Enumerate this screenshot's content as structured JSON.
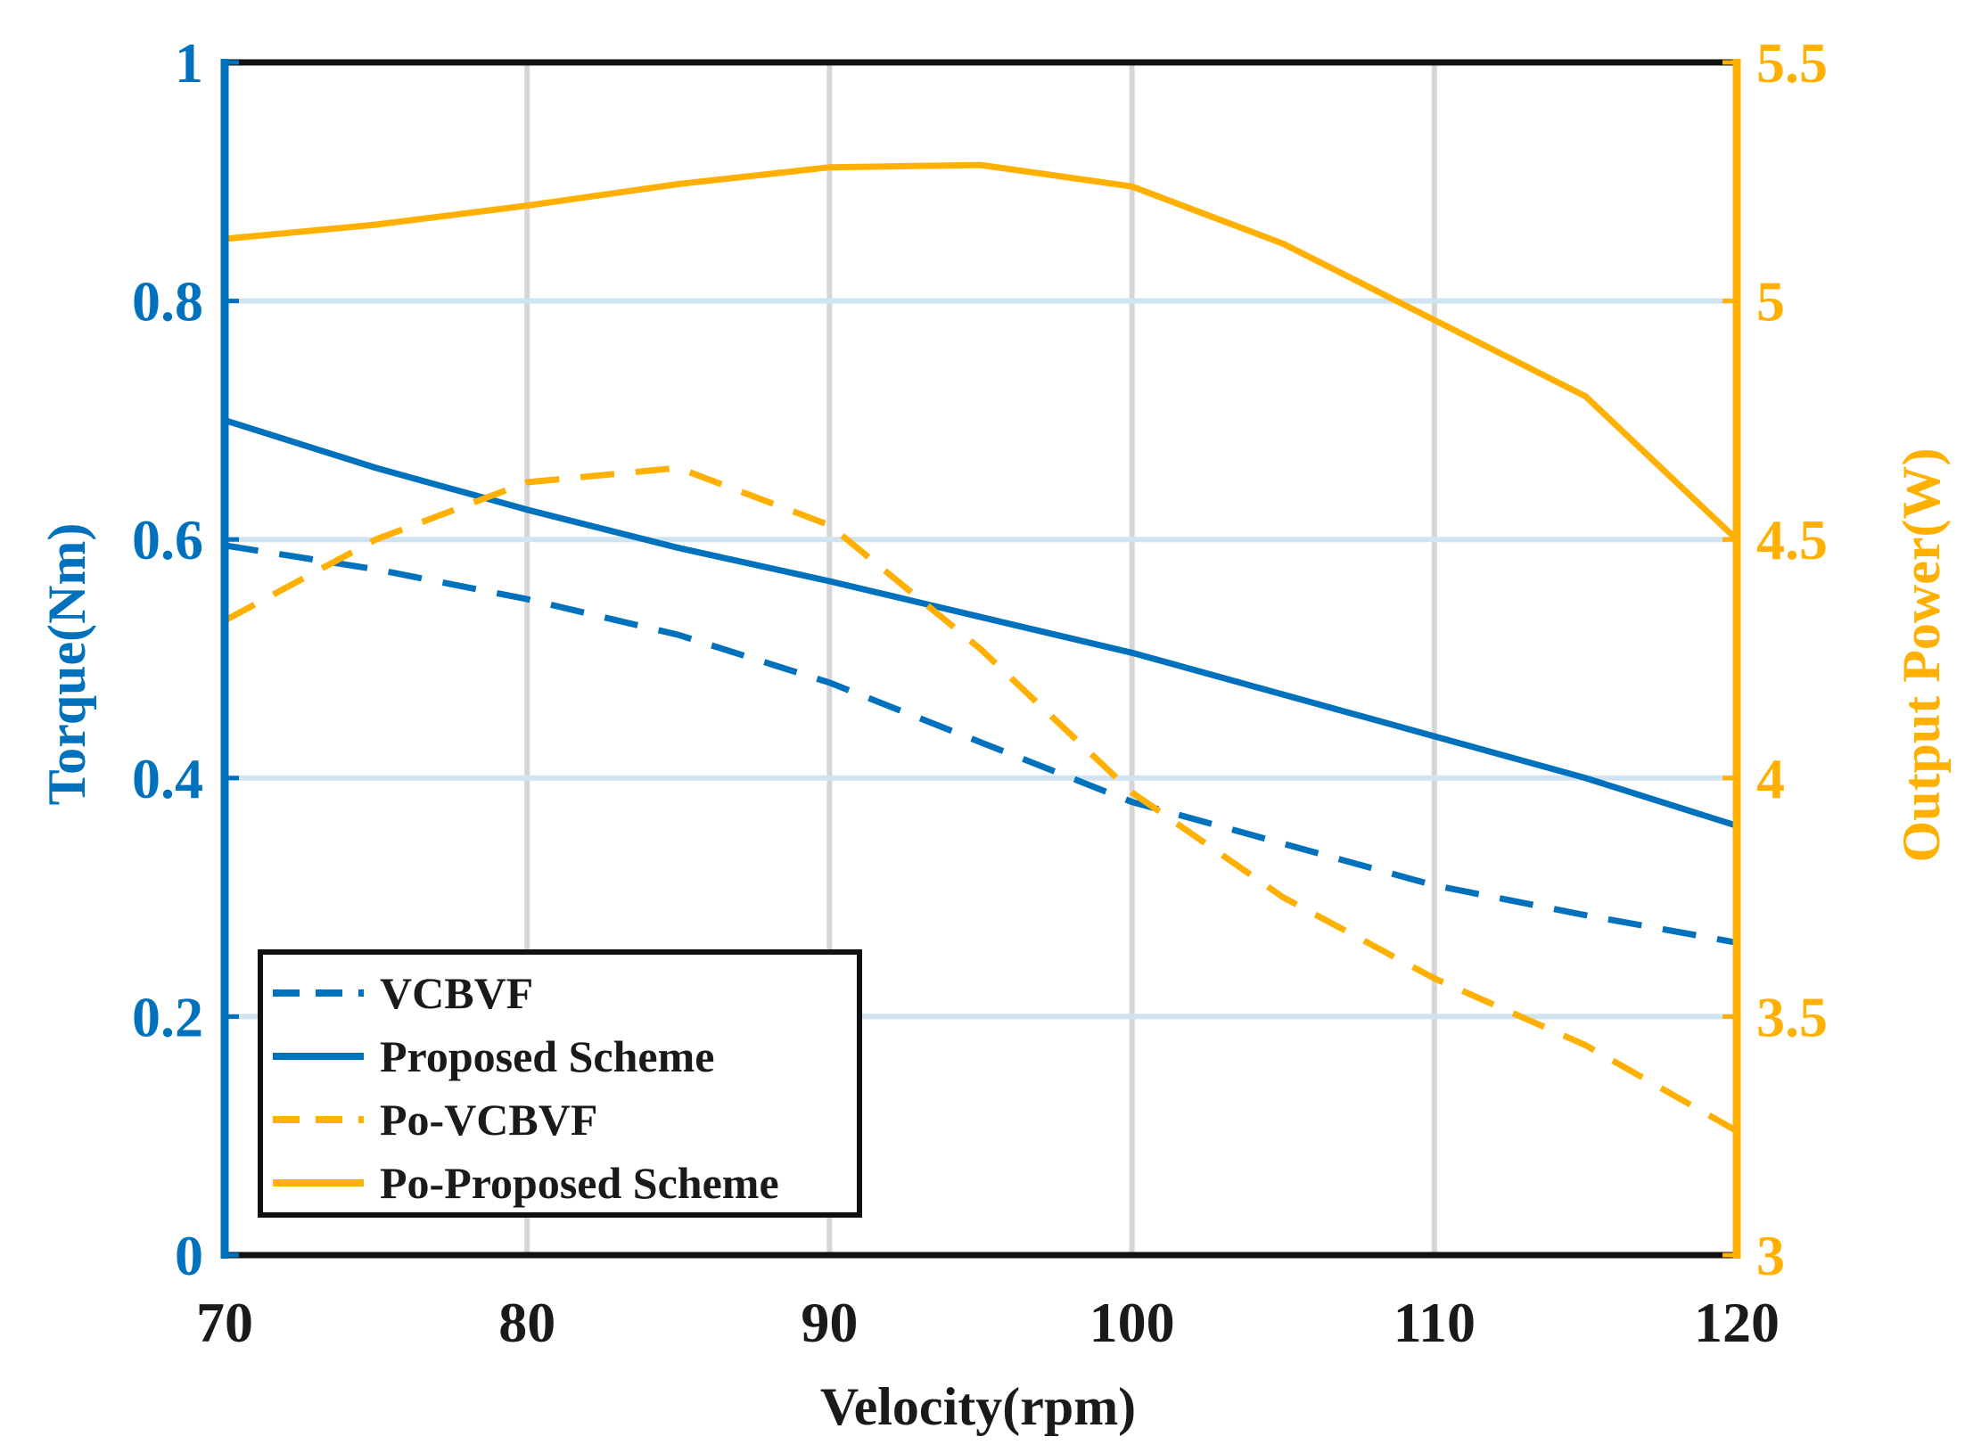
{
  "chart_data": {
    "type": "line",
    "title": "",
    "xlabel": "Velocity(rpm)",
    "ylabel_left": "Torque(Nm)",
    "ylabel_right": "Output Power(W)",
    "xlim": [
      70,
      120
    ],
    "ylim_left": [
      0,
      1
    ],
    "ylim_right": [
      3,
      5.5
    ],
    "xticks": [
      "70",
      "80",
      "90",
      "100",
      "110",
      "120"
    ],
    "yticks_left": [
      "0",
      "0.2",
      "0.4",
      "0.6",
      "0.8",
      "1"
    ],
    "yticks_right": [
      "3",
      "3.5",
      "4",
      "4.5",
      "5",
      "5.5"
    ],
    "grid": true,
    "legend_position": "bottom-left",
    "colors": {
      "torque": "#0072BD",
      "power": "#FFB000",
      "frame": "#111111",
      "grid_v": "#d6d6d6",
      "grid_h": "#cfe3f1"
    },
    "series": [
      {
        "name": "VCBVF",
        "axis": "left",
        "style": "dashed",
        "color": "#0072BD",
        "x": [
          70,
          75,
          80,
          85,
          90,
          95,
          100,
          105,
          110,
          115,
          120
        ],
        "y": [
          0.595,
          0.575,
          0.55,
          0.52,
          0.48,
          0.43,
          0.38,
          0.345,
          0.31,
          0.285,
          0.262
        ]
      },
      {
        "name": "Proposed Scheme",
        "axis": "left",
        "style": "solid",
        "color": "#0072BD",
        "x": [
          70,
          75,
          80,
          85,
          90,
          95,
          100,
          105,
          110,
          115,
          120
        ],
        "y": [
          0.7,
          0.66,
          0.625,
          0.593,
          0.565,
          0.535,
          0.505,
          0.47,
          0.435,
          0.4,
          0.36
        ]
      },
      {
        "name": "Po-VCBVF",
        "axis": "right",
        "style": "dashed",
        "color": "#FFB000",
        "x": [
          70,
          75,
          80,
          85,
          90,
          95,
          100,
          105,
          110,
          115,
          120
        ],
        "y": [
          4.33,
          4.5,
          4.62,
          4.65,
          4.53,
          4.27,
          3.97,
          3.75,
          3.58,
          3.44,
          3.26
        ]
      },
      {
        "name": "Po-Proposed Scheme",
        "axis": "right",
        "style": "solid",
        "color": "#FFB000",
        "x": [
          70,
          75,
          80,
          85,
          90,
          95,
          100,
          105,
          110,
          115,
          120
        ],
        "y": [
          5.13,
          5.16,
          5.2,
          5.245,
          5.28,
          5.285,
          5.24,
          5.12,
          4.96,
          4.8,
          4.5
        ]
      }
    ]
  }
}
